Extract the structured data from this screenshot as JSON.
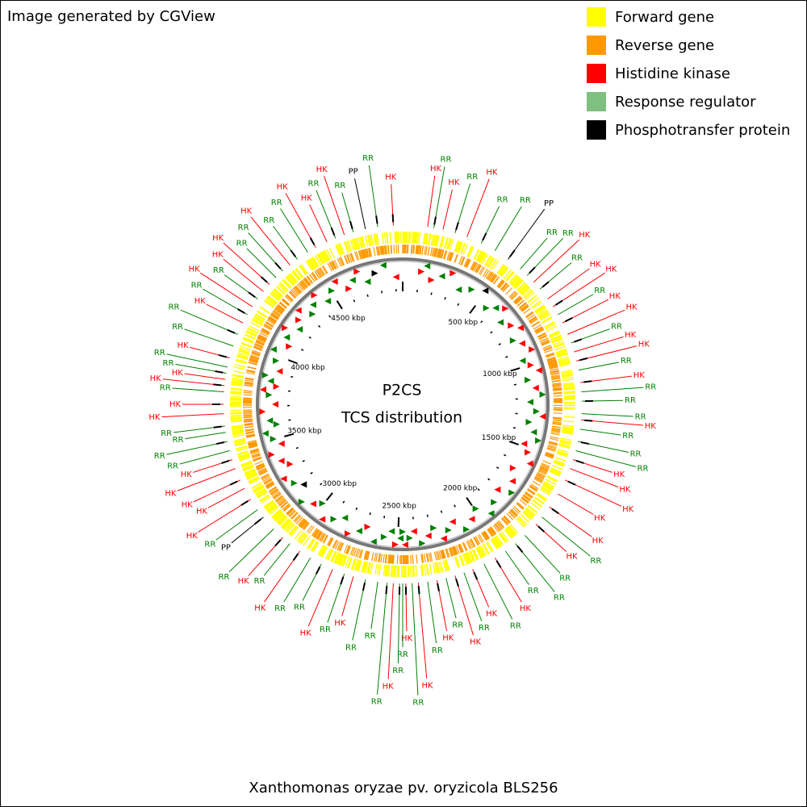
{
  "title": "Image generated by CGView",
  "center_title": [
    "P2CS",
    "TCS distribution"
  ],
  "footer": "Xanthomonas oryzae pv. oryzicola BLS256",
  "legend": [
    {
      "label": "Forward gene",
      "color": "#ffff00"
    },
    {
      "label": "Reverse gene",
      "color": "#ff9900"
    },
    {
      "label": "Histidine kinase",
      "color": "#ff0000"
    },
    {
      "label": "Response regulator",
      "color": "#7fbf7f"
    },
    {
      "label": "Phosphotransfer protein",
      "color": "#000000"
    }
  ],
  "ring_ticks": [
    "500 kbp",
    "1000 kbp",
    "1500 kbp",
    "2000 kbp",
    "2500 kbp",
    "3000 kbp",
    "3500 kbp",
    "4000 kbp",
    "4500 kbp"
  ],
  "feature_labels": [
    {
      "text": "HK",
      "color": "#ff0000"
    },
    {
      "text": "HK",
      "color": "#ff0000"
    },
    {
      "text": "RR",
      "color": "#008000"
    },
    {
      "text": "HK",
      "color": "#ff0000"
    },
    {
      "text": "RR",
      "color": "#008000"
    },
    {
      "text": "HK",
      "color": "#ff0000"
    },
    {
      "text": "RR",
      "color": "#008000"
    },
    {
      "text": "RR",
      "color": "#008000"
    },
    {
      "text": "PP",
      "color": "#000000"
    },
    {
      "text": "RR",
      "color": "#008000"
    },
    {
      "text": "RR",
      "color": "#008000"
    },
    {
      "text": "HK",
      "color": "#ff0000"
    },
    {
      "text": "RR",
      "color": "#008000"
    },
    {
      "text": "HK",
      "color": "#ff0000"
    },
    {
      "text": "HK",
      "color": "#ff0000"
    },
    {
      "text": "RR",
      "color": "#008000"
    },
    {
      "text": "HK",
      "color": "#ff0000"
    },
    {
      "text": "HK",
      "color": "#ff0000"
    },
    {
      "text": "RR",
      "color": "#008000"
    },
    {
      "text": "HK",
      "color": "#ff0000"
    },
    {
      "text": "HK",
      "color": "#ff0000"
    },
    {
      "text": "RR",
      "color": "#008000"
    },
    {
      "text": "HK",
      "color": "#ff0000"
    },
    {
      "text": "RR",
      "color": "#008000"
    },
    {
      "text": "RR",
      "color": "#008000"
    },
    {
      "text": "RR",
      "color": "#008000"
    },
    {
      "text": "HK",
      "color": "#ff0000"
    },
    {
      "text": "RR",
      "color": "#008000"
    },
    {
      "text": "RR",
      "color": "#008000"
    },
    {
      "text": "RR",
      "color": "#008000"
    },
    {
      "text": "HK",
      "color": "#ff0000"
    },
    {
      "text": "HK",
      "color": "#ff0000"
    },
    {
      "text": "HK",
      "color": "#ff0000"
    },
    {
      "text": "HK",
      "color": "#ff0000"
    },
    {
      "text": "HK",
      "color": "#ff0000"
    },
    {
      "text": "RR",
      "color": "#008000"
    },
    {
      "text": "HK",
      "color": "#ff0000"
    },
    {
      "text": "RR",
      "color": "#008000"
    },
    {
      "text": "RR",
      "color": "#008000"
    },
    {
      "text": "RR",
      "color": "#008000"
    },
    {
      "text": "HK",
      "color": "#ff0000"
    },
    {
      "text": "RR",
      "color": "#008000"
    },
    {
      "text": "HK",
      "color": "#ff0000"
    },
    {
      "text": "RR",
      "color": "#008000"
    },
    {
      "text": "HK",
      "color": "#ff0000"
    },
    {
      "text": "RR",
      "color": "#008000"
    },
    {
      "text": "HK",
      "color": "#ff0000"
    },
    {
      "text": "RR",
      "color": "#008000"
    },
    {
      "text": "HK",
      "color": "#ff0000"
    },
    {
      "text": "RR",
      "color": "#008000"
    },
    {
      "text": "HK",
      "color": "#ff0000"
    },
    {
      "text": "RR",
      "color": "#008000"
    },
    {
      "text": "RR",
      "color": "#008000"
    },
    {
      "text": "HK",
      "color": "#ff0000"
    },
    {
      "text": "RR",
      "color": "#008000"
    },
    {
      "text": "RR",
      "color": "#008000"
    },
    {
      "text": "RR",
      "color": "#008000"
    },
    {
      "text": "HK",
      "color": "#ff0000"
    },
    {
      "text": "RR",
      "color": "#008000"
    },
    {
      "text": "HK",
      "color": "#ff0000"
    },
    {
      "text": "RR",
      "color": "#008000"
    },
    {
      "text": "RR",
      "color": "#008000"
    },
    {
      "text": "HK",
      "color": "#ff0000"
    },
    {
      "text": "RR",
      "color": "#008000"
    },
    {
      "text": "HK",
      "color": "#ff0000"
    },
    {
      "text": "RR",
      "color": "#008000"
    },
    {
      "text": "PP",
      "color": "#000000"
    },
    {
      "text": "RR",
      "color": "#008000"
    },
    {
      "text": "HK",
      "color": "#ff0000"
    },
    {
      "text": "HK",
      "color": "#ff0000"
    },
    {
      "text": "HK",
      "color": "#ff0000"
    },
    {
      "text": "HK",
      "color": "#ff0000"
    },
    {
      "text": "HK",
      "color": "#ff0000"
    },
    {
      "text": "RR",
      "color": "#008000"
    },
    {
      "text": "RR",
      "color": "#008000"
    },
    {
      "text": "RR",
      "color": "#008000"
    },
    {
      "text": "RR",
      "color": "#008000"
    },
    {
      "text": "HK",
      "color": "#ff0000"
    },
    {
      "text": "HK",
      "color": "#ff0000"
    },
    {
      "text": "RR",
      "color": "#008000"
    },
    {
      "text": "HK",
      "color": "#ff0000"
    },
    {
      "text": "HK",
      "color": "#ff0000"
    },
    {
      "text": "RR",
      "color": "#008000"
    },
    {
      "text": "RR",
      "color": "#008000"
    },
    {
      "text": "HK",
      "color": "#ff0000"
    },
    {
      "text": "RR",
      "color": "#008000"
    },
    {
      "text": "RR",
      "color": "#008000"
    },
    {
      "text": "HK",
      "color": "#ff0000"
    },
    {
      "text": "RR",
      "color": "#008000"
    },
    {
      "text": "HK",
      "color": "#ff0000"
    },
    {
      "text": "RR",
      "color": "#008000"
    },
    {
      "text": "HK",
      "color": "#ff0000"
    },
    {
      "text": "HK",
      "color": "#ff0000"
    },
    {
      "text": "RR",
      "color": "#008000"
    },
    {
      "text": "RR",
      "color": "#008000"
    },
    {
      "text": "HK",
      "color": "#ff0000"
    },
    {
      "text": "RR",
      "color": "#008000"
    },
    {
      "text": "RR",
      "color": "#008000"
    },
    {
      "text": "HK",
      "color": "#ff0000"
    },
    {
      "text": "HK",
      "color": "#ff0000"
    },
    {
      "text": "RR",
      "color": "#008000"
    },
    {
      "text": "HK",
      "color": "#ff0000"
    },
    {
      "text": "RR",
      "color": "#008000"
    },
    {
      "text": "PP",
      "color": "#000000"
    },
    {
      "text": "RR",
      "color": "#008000"
    }
  ]
}
